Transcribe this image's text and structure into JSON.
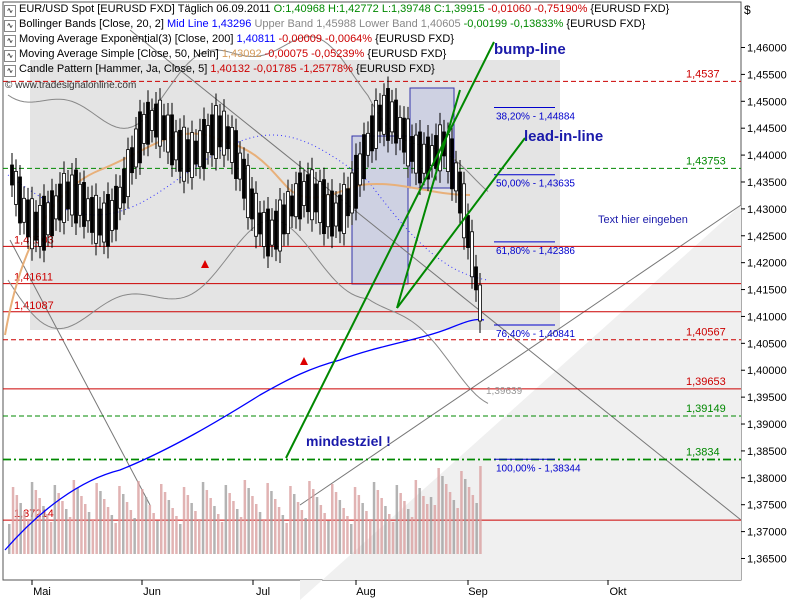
{
  "header": {
    "title": "EUR/USD Spot [EURUSD FXD]",
    "interval": "Täglich",
    "date": "06.09.2011",
    "ohlc": "O:1,40968 H:1,42772 L:1,39748 C:1,39915",
    "change": "-0,01060 -0,75190%",
    "symbol": "{EURUSD FXD}",
    "currency_symbol": "$"
  },
  "indicators": [
    {
      "name": "Bollinger Bands [Close, 20, 2]",
      "mid": "Mid Line 1,43296",
      "upper": "Upper Band 1,45988",
      "lower": "Lower Band 1,40605",
      "change": "-0,00199 -0,13833%",
      "symbol": "{EURUSD FXD}"
    },
    {
      "name": "Moving Average Exponential(3) [Close, 200]",
      "value": "1,40811",
      "change": "-0,00009 -0,0064%",
      "symbol": "{EURUSD FXD}"
    },
    {
      "name": "Moving Average Simple [Close, 50, Nein]",
      "value": "1,43092",
      "change": "-0,00075 -0,05239%",
      "symbol": "{EURUSD FXD}"
    },
    {
      "name": "Candle Pattern [Hammer, Ja, Close, 5]",
      "value": "1,40132",
      "change": "-0,01785 -1,25778%",
      "symbol": "{EURUSD FXD}"
    }
  ],
  "copyright": "© www.tradesignalonline.com",
  "colors": {
    "candle_up": "#ffffff",
    "candle_down": "#000000",
    "bollinger": "#888888",
    "ema200": "#0000ff",
    "sma50": "#e8b07a",
    "trend": "#008800",
    "hline_red": "#cc0000",
    "hline_green": "#008800",
    "fib": "#0000cc"
  },
  "chart_data": {
    "type": "candlestick",
    "y_axis": {
      "ylim": [
        1.361,
        1.464
      ],
      "ticks": [
        "1,46000",
        "1,45500",
        "1,45000",
        "1,44500",
        "1,44000",
        "1,43500",
        "1,43000",
        "1,42500",
        "1,42000",
        "1,41500",
        "1,41000",
        "1,40500",
        "1,40000",
        "1,39500",
        "1,39000",
        "1,38500",
        "1,38000",
        "1,37500",
        "1,37000",
        "1,36500"
      ]
    },
    "x_axis": {
      "months": [
        "Mai",
        "Jun",
        "Jul",
        "Aug",
        "Sep",
        "Okt"
      ]
    },
    "ohlc": [],
    "horizontal_lines": [
      {
        "value": 1.4537,
        "label": "1,4537",
        "color": "red",
        "style": "dashed",
        "side": "right"
      },
      {
        "value": 1.43753,
        "label": "1,43753",
        "color": "green",
        "style": "dashed",
        "side": "right"
      },
      {
        "value": 1.42303,
        "label": "1,42303",
        "color": "red",
        "style": "solid",
        "side": "left"
      },
      {
        "value": 1.41611,
        "label": "1,41611",
        "color": "red",
        "style": "solid",
        "side": "left"
      },
      {
        "value": 1.41087,
        "label": "1,41087",
        "color": "red",
        "style": "solid",
        "side": "left"
      },
      {
        "value": 1.40567,
        "label": "1,40567",
        "color": "red",
        "style": "dashed",
        "side": "right"
      },
      {
        "value": 1.39653,
        "label": "1,39653",
        "color": "red",
        "style": "solid",
        "side": "right"
      },
      {
        "value": 1.39149,
        "label": "1,39149",
        "color": "green",
        "style": "dashed",
        "side": "right"
      },
      {
        "value": 1.3834,
        "label": "1,3834",
        "color": "green",
        "style": "dashdot",
        "side": "right"
      },
      {
        "value": 1.37214,
        "label": "1,37214",
        "color": "red",
        "style": "solid",
        "side": "left"
      }
    ],
    "fibonacci": [
      {
        "value": 1.44884,
        "label": "38,20% - 1,44884"
      },
      {
        "value": 1.43635,
        "label": "50,00% - 1,43635"
      },
      {
        "value": 1.42386,
        "label": "61,80% - 1,42386"
      },
      {
        "value": 1.40841,
        "label": "76,40% - 1,40841"
      },
      {
        "value": 1.38344,
        "label": "100,00% - 1,38344"
      }
    ],
    "annotations": [
      {
        "text": "bump-line",
        "color": "blue"
      },
      {
        "text": "lead-in-line",
        "color": "blue"
      },
      {
        "text": "Text hier eingeben",
        "color": "blue"
      },
      {
        "text": "mindestziel !",
        "color": "blue"
      },
      {
        "text": "1,39639",
        "color": "grey"
      }
    ]
  }
}
